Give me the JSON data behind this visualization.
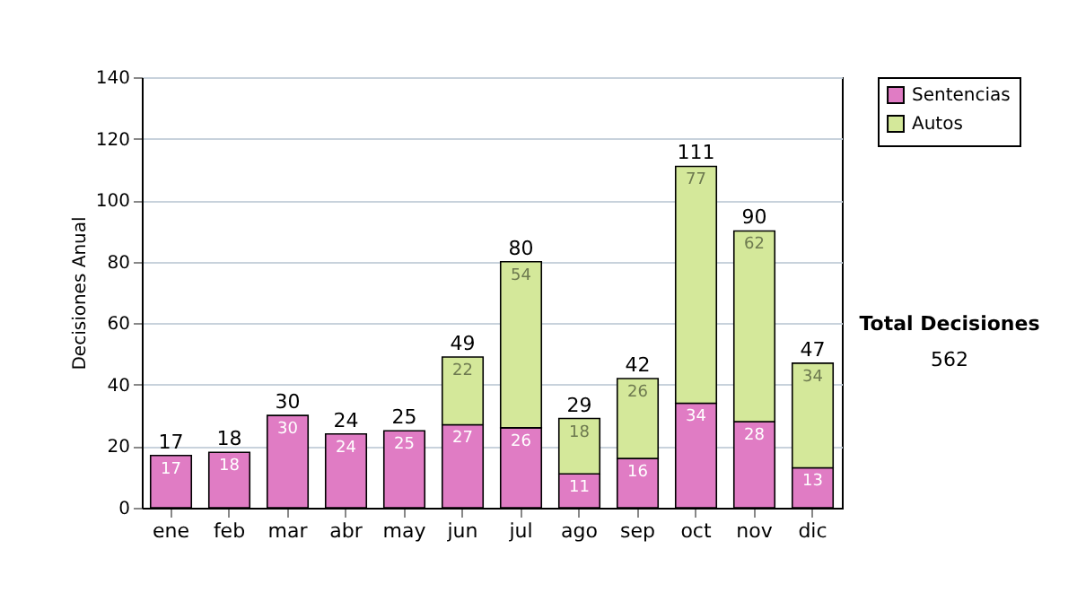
{
  "chart_data": {
    "type": "bar",
    "stacked": true,
    "ylabel": "Decisiones Anual",
    "categories": [
      "ene",
      "feb",
      "mar",
      "abr",
      "may",
      "jun",
      "jul",
      "ago",
      "sep",
      "oct",
      "nov",
      "dic"
    ],
    "series": [
      {
        "name": "Sentencias",
        "color": "#e07cc4",
        "values": [
          17,
          18,
          30,
          24,
          25,
          27,
          26,
          11,
          16,
          34,
          28,
          13
        ],
        "value_labels": [
          "17",
          "18",
          "30",
          "24",
          "25",
          "27",
          "26",
          "11",
          "16",
          "34",
          "28",
          "13"
        ]
      },
      {
        "name": "Autos",
        "color": "#d4e89a",
        "values": [
          null,
          null,
          null,
          null,
          null,
          22,
          54,
          18,
          26,
          77,
          62,
          34
        ],
        "value_labels": [
          null,
          null,
          null,
          null,
          null,
          "22",
          "54",
          "18",
          "26",
          "77",
          "62",
          "34"
        ]
      }
    ],
    "totals": [
      "17",
      "18",
      "30",
      "24",
      "25",
      "49",
      "80",
      "29",
      "42",
      "111",
      "90",
      "47"
    ],
    "ylim": [
      0,
      140
    ],
    "yticks": [
      0,
      20,
      40,
      60,
      80,
      100,
      120,
      140
    ],
    "grid": "y",
    "legend": "right",
    "annotations": [
      "Total Decisiones",
      "562"
    ]
  }
}
